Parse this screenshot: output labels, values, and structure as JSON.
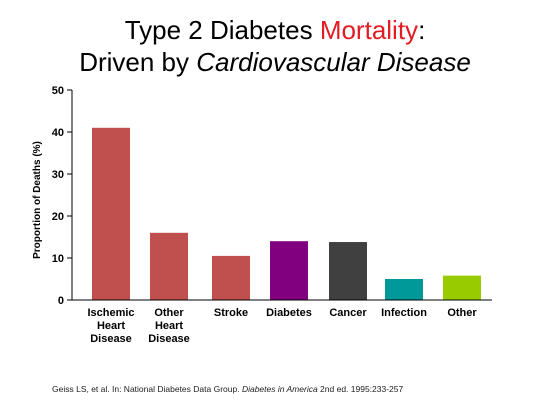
{
  "title": {
    "line1_prefix": "Type 2 Diabetes ",
    "line1_accent": "Mortality",
    "line1_suffix": ":",
    "line2_prefix": "Driven by ",
    "line2_italic": "Cardiovascular Disease",
    "accent_color": "#e31b23"
  },
  "chart_data": {
    "type": "bar",
    "categories": [
      [
        "Ischemic",
        "Heart",
        "Disease"
      ],
      [
        "Other",
        "Heart",
        "Disease"
      ],
      [
        "Stroke"
      ],
      [
        "Diabetes"
      ],
      [
        "Cancer"
      ],
      [
        "Infection"
      ],
      [
        "Other"
      ]
    ],
    "values": [
      41,
      16,
      10.5,
      14,
      13.8,
      5,
      5.8
    ],
    "colors": [
      "#c0504d",
      "#c0504d",
      "#c0504d",
      "#800080",
      "#404040",
      "#009999",
      "#99cc00"
    ],
    "ylabel": "Proportion of Deaths (%)",
    "xlabel": "",
    "ylim": [
      0,
      50
    ],
    "yticks": [
      0,
      10,
      20,
      30,
      40,
      50
    ],
    "grid": false
  },
  "source": {
    "prefix": "Geiss LS, et al. In: National Diabetes Data Group. ",
    "italic": "Diabetes in America",
    "suffix": " 2nd ed. 1995:233-257"
  }
}
